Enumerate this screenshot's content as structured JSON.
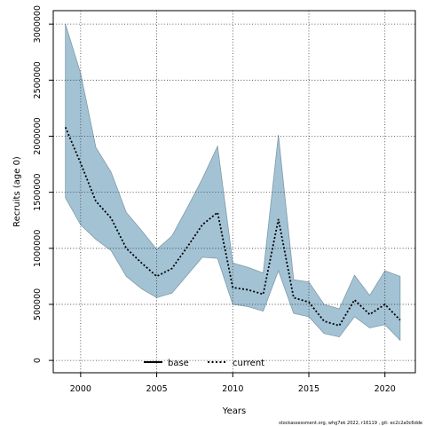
{
  "chart_data": {
    "type": "line",
    "xlabel": "Years",
    "ylabel": "Recruits (age 0)",
    "xlim": [
      1998.2,
      2022.0
    ],
    "ylim": [
      -110000,
      3120000
    ],
    "x_ticks": [
      2000,
      2005,
      2010,
      2015,
      2020
    ],
    "y_ticks": [
      0,
      500000,
      1000000,
      1500000,
      2000000,
      2500000,
      3000000
    ],
    "grid": true,
    "legend_position": "bottom-center",
    "series": [
      {
        "name": "base",
        "style": "solid",
        "color": "#000000"
      },
      {
        "name": "current",
        "style": "dotted",
        "color": "#000000",
        "x": [
          1999,
          2000,
          2001,
          2002,
          2003,
          2004,
          2005,
          2006,
          2007,
          2008,
          2009,
          2010,
          2011,
          2012,
          2013,
          2014,
          2015,
          2016,
          2017,
          2018,
          2019,
          2020,
          2021
        ],
        "y": [
          2080000,
          1760000,
          1420000,
          1270000,
          1000000,
          870000,
          750000,
          820000,
          1010000,
          1210000,
          1320000,
          650000,
          630000,
          590000,
          1260000,
          560000,
          520000,
          350000,
          310000,
          540000,
          410000,
          500000,
          360000
        ]
      }
    ],
    "band": {
      "x": [
        1999,
        2000,
        2001,
        2002,
        2003,
        2004,
        2005,
        2006,
        2007,
        2008,
        2009,
        2010,
        2011,
        2012,
        2013,
        2014,
        2015,
        2016,
        2017,
        2018,
        2019,
        2020,
        2021
      ],
      "upper": [
        3000000,
        2560000,
        1900000,
        1680000,
        1320000,
        1160000,
        990000,
        1110000,
        1360000,
        1620000,
        1910000,
        870000,
        830000,
        780000,
        2010000,
        720000,
        700000,
        500000,
        460000,
        760000,
        580000,
        800000,
        750000
      ],
      "lower": [
        1450000,
        1210000,
        1080000,
        980000,
        750000,
        640000,
        560000,
        600000,
        760000,
        920000,
        910000,
        500000,
        480000,
        440000,
        800000,
        420000,
        390000,
        240000,
        210000,
        390000,
        290000,
        320000,
        180000
      ],
      "fill": "#a3c3d5",
      "stroke": "#7f9aa8"
    },
    "footer": "stockassessment.org, whg7ek 2022, r16119 ,  git: ec2c2a0c6dde"
  }
}
